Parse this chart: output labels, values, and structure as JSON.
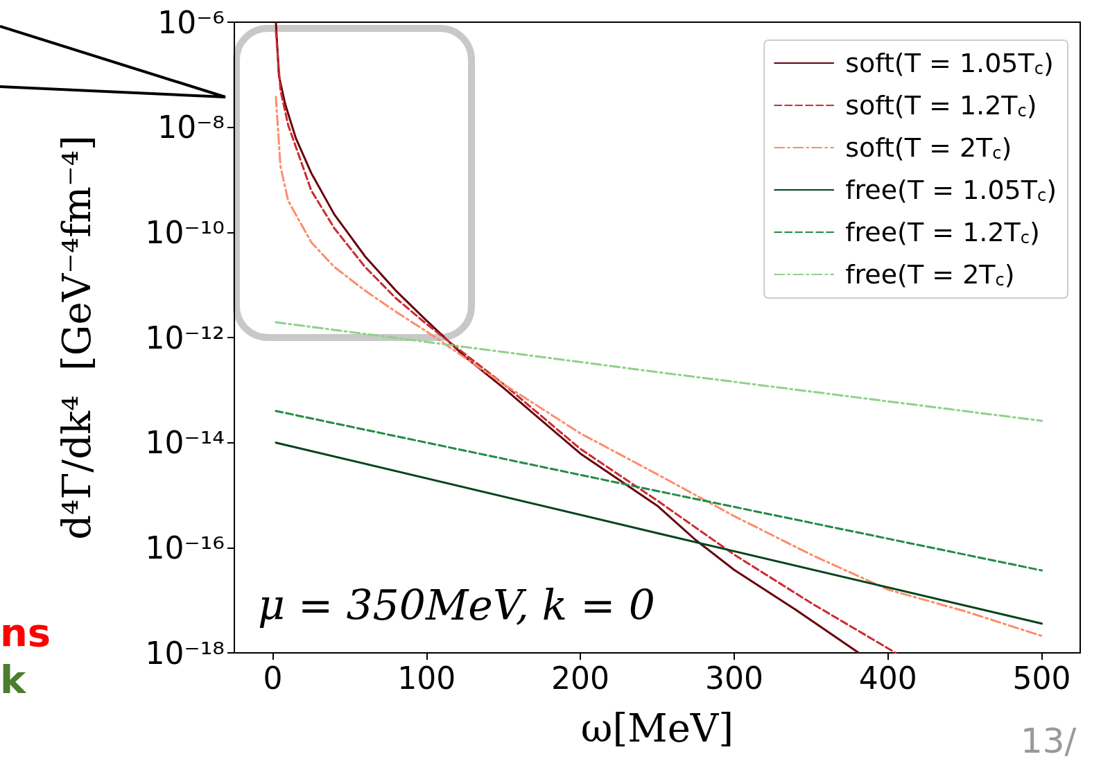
{
  "chart_data": {
    "type": "line",
    "xlabel": "ω[MeV]",
    "ylabel": "d⁴Γ/dk⁴  [GeV⁻⁴fm⁻⁴]",
    "log": "y",
    "xlim": [
      -25,
      525
    ],
    "xticks": [
      0,
      100,
      200,
      300,
      400,
      500
    ],
    "ylim": [
      1e-18,
      1e-06
    ],
    "yticks": [
      {
        "value": 1e-18,
        "label": "10⁻¹⁸"
      },
      {
        "value": 1e-16,
        "label": "10⁻¹⁶"
      },
      {
        "value": 1e-14,
        "label": "10⁻¹⁴"
      },
      {
        "value": 1e-12,
        "label": "10⁻¹²"
      },
      {
        "value": 1e-10,
        "label": "10⁻¹⁰"
      },
      {
        "value": 1e-08,
        "label": "10⁻⁸"
      },
      {
        "value": 1e-06,
        "label": "10⁻⁶"
      }
    ],
    "grid": false,
    "legend": "top right",
    "marker": "none",
    "annotations": [
      "μ = 350MeV, k = 0",
      "ns",
      "k",
      "13/"
    ],
    "series": [
      {
        "name": "soft(T = 1.05T$_{c}$)",
        "color": "#67000d",
        "line_style": "solid",
        "x": [
          2,
          4,
          8,
          15,
          25,
          40,
          60,
          80,
          100,
          125,
          150,
          175,
          200,
          250,
          275,
          300,
          340,
          381
        ],
        "values": [
          1e-06,
          9.5e-08,
          2.8e-08,
          6.2e-09,
          1.35e-09,
          2.2e-10,
          3.5e-11,
          7.8e-12,
          2.1e-12,
          4.3e-13,
          1.1e-13,
          2.6e-14,
          6.2e-15,
          6.3e-16,
          1.4e-16,
          3.8e-17,
          6.6e-18,
          1e-18
        ]
      },
      {
        "name": "soft(T = 1.2T$_{c}$)",
        "color": "#cb2a2f",
        "line_style": "dashed",
        "x": [
          2,
          5,
          10,
          25,
          40,
          60,
          80,
          100,
          150,
          200,
          250,
          300,
          350,
          405
        ],
        "values": [
          6.8e-07,
          5.1e-08,
          1.1e-08,
          6.3e-10,
          1.2e-10,
          2.2e-11,
          5.6e-12,
          1.8e-12,
          1.3e-13,
          7.6e-15,
          7.9e-16,
          7.4e-17,
          8.9e-18,
          1e-18
        ]
      },
      {
        "name": "soft(T = 2T$_{c}$)",
        "color": "#fc8d6a",
        "line_style": "dashdot",
        "x": [
          2,
          5,
          10,
          25,
          40,
          60,
          80,
          100,
          150,
          200,
          250,
          300,
          350,
          400,
          450,
          500
        ],
        "values": [
          3.8e-08,
          1.8e-09,
          4e-10,
          6.5e-11,
          2.2e-11,
          7.8e-12,
          3.1e-12,
          1.3e-12,
          1.3e-13,
          1.5e-14,
          2.5e-15,
          4e-16,
          7.4e-17,
          1.6e-17,
          6.2e-18,
          2.1e-18
        ]
      },
      {
        "name": "free(T = 1.05T$_{c}$)",
        "color": "#00441b",
        "line_style": "solid",
        "x": [
          2,
          250,
          500
        ],
        "values": [
          1e-14,
          1.9e-16,
          3.6e-18
        ]
      },
      {
        "name": "free(T = 1.2T$_{c}$)",
        "color": "#238b45",
        "line_style": "dashed",
        "x": [
          2,
          250,
          500
        ],
        "values": [
          4e-14,
          1.2e-15,
          3.7e-17
        ]
      },
      {
        "name": "free(T = 2T$_{c}$)",
        "color": "#90d18a",
        "line_style": "dashdot",
        "x": [
          2,
          250,
          500
        ],
        "values": [
          1.95e-12,
          2.2e-13,
          2.6e-14
        ]
      }
    ]
  }
}
